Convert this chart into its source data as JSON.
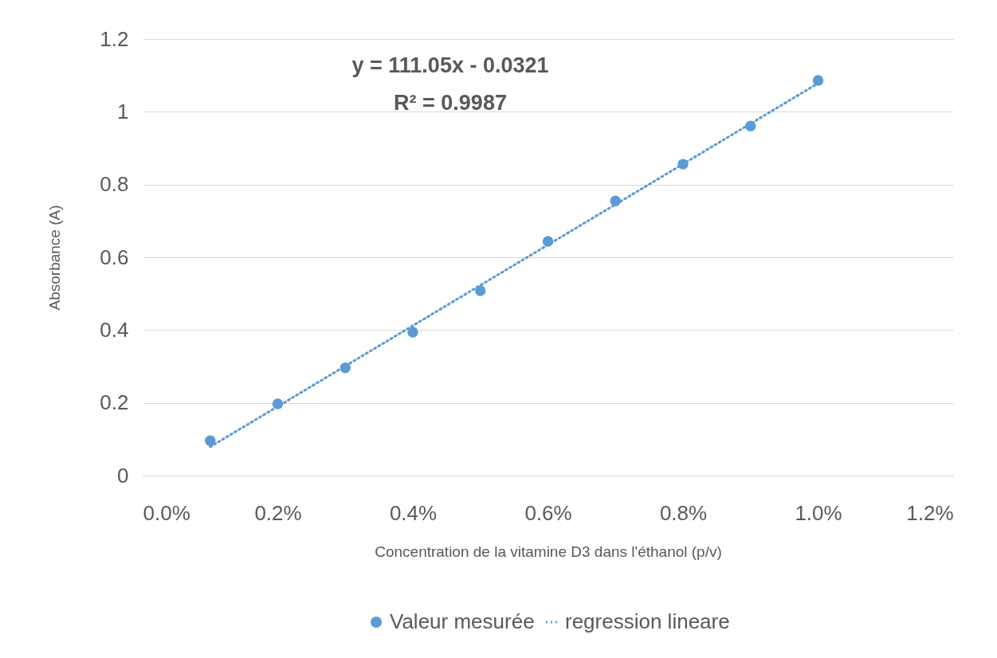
{
  "chart_data": {
    "type": "scatter",
    "xlabel": "Concentration de la vitamine D3 dans l'éthanol (p/v)",
    "ylabel": "Absorbance (A)",
    "annotations": [
      "y = 111.05x - 0.0321",
      "R² = 0.9987"
    ],
    "series": [
      {
        "name": "Valeur mesurée",
        "type": "scatter",
        "color": "#5b9bd5",
        "marker": "circle",
        "x": [
          0.001,
          0.002,
          0.003,
          0.004,
          0.005,
          0.006,
          0.007,
          0.008,
          0.009,
          0.01
        ],
        "values": [
          0.096,
          0.197,
          0.296,
          0.394,
          0.508,
          0.644,
          0.755,
          0.856,
          0.961,
          1.086
        ]
      },
      {
        "name": "regression lineare",
        "type": "line",
        "color": "#5b9bd5",
        "line_style": "dotted",
        "x": [
          0.001,
          0.01
        ],
        "values": [
          0.079,
          1.0784
        ]
      }
    ],
    "xlim": [
      0,
      0.012
    ],
    "xticks": [
      {
        "value": 0,
        "label": "0.0%"
      },
      {
        "value": 0.002,
        "label": "0.2%"
      },
      {
        "value": 0.004,
        "label": "0.4%"
      },
      {
        "value": 0.006,
        "label": "0.6%"
      },
      {
        "value": 0.008,
        "label": "0.8%"
      },
      {
        "value": 0.01,
        "label": "1.0%"
      },
      {
        "value": 0.012,
        "label": "1.2%"
      }
    ],
    "ylim": [
      0,
      1.2
    ],
    "yticks": [
      0,
      0.2,
      0.4,
      0.6,
      0.8,
      1,
      1.2
    ],
    "grid": "y",
    "legend": "bottom"
  }
}
